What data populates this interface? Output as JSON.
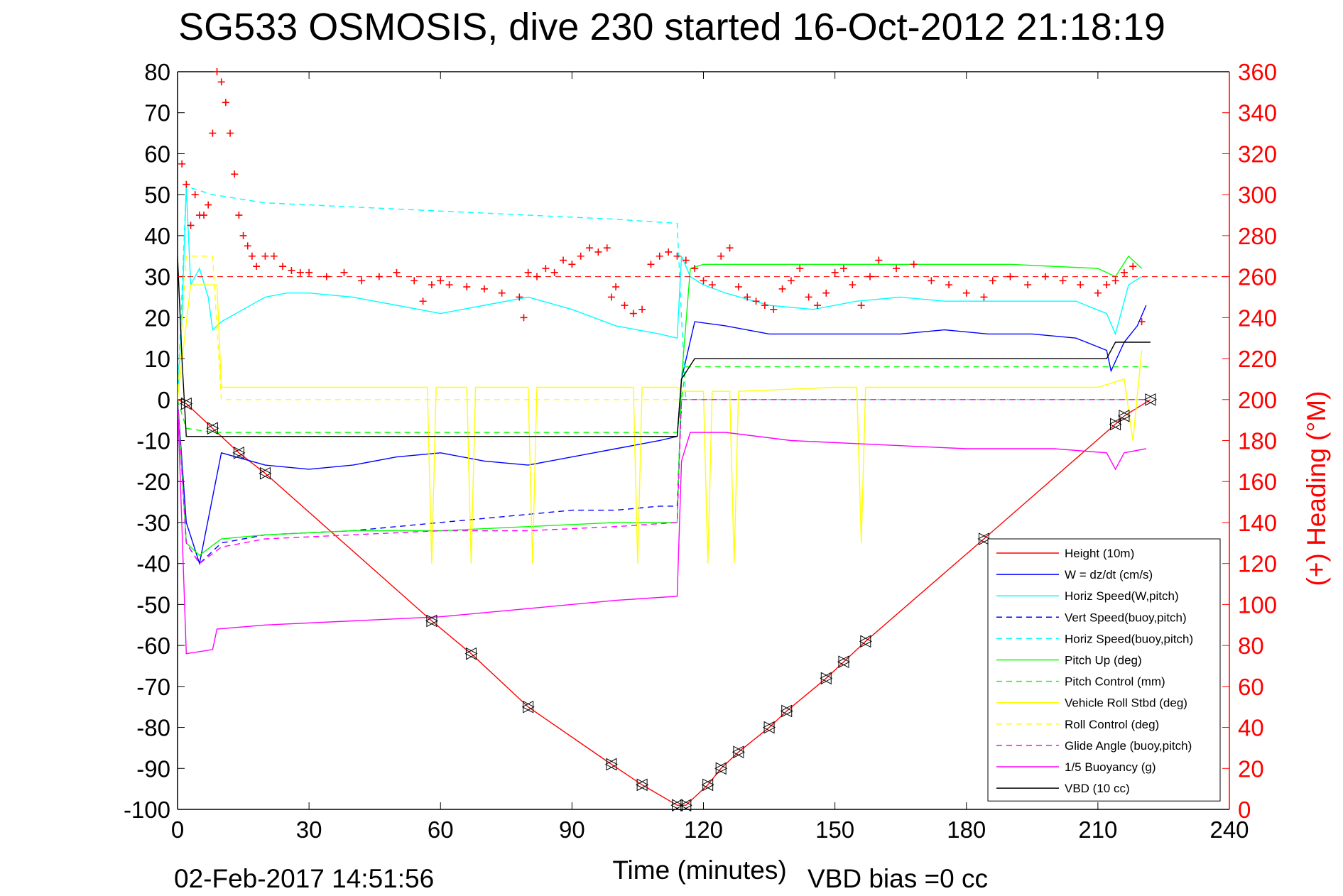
{
  "chart_data": {
    "type": "line",
    "title": "SG533 OSMOSIS, dive 230 started 16-Oct-2012 21:18:19",
    "xlabel": "Time (minutes)",
    "ylabel_right": "(+) Heading (°M)",
    "footer_left": "02-Feb-2017 14:51:56",
    "footer_right": "VBD bias =0 cc",
    "xlim": [
      0,
      240
    ],
    "ylim": [
      -100,
      80
    ],
    "ylim_right": [
      0,
      360
    ],
    "x_ticks": [
      0,
      30,
      60,
      90,
      120,
      150,
      180,
      210,
      240
    ],
    "y_ticks": [
      80,
      70,
      60,
      50,
      40,
      30,
      20,
      10,
      0,
      -10,
      -20,
      -30,
      -40,
      -50,
      -60,
      -70,
      -80,
      -90,
      -100
    ],
    "y_ticks_right": [
      360,
      340,
      320,
      300,
      280,
      260,
      240,
      220,
      200,
      180,
      160,
      140,
      120,
      100,
      80,
      60,
      40,
      20,
      0
    ],
    "grid": true,
    "legend_position": "bottom-right",
    "series": [
      {
        "name": "Height (10m)",
        "color": "#ff0000",
        "style": "solid",
        "x": [
          0,
          2,
          8,
          14,
          20,
          58,
          67,
          80,
          99,
          106,
          114,
          116,
          121,
          124,
          128,
          135,
          139,
          148,
          152,
          157,
          184,
          214,
          216,
          222
        ],
        "y": [
          0,
          -1,
          -7,
          -13,
          -18,
          -54,
          -62,
          -75,
          -89,
          -94,
          -99,
          -99,
          -94,
          -90,
          -86,
          -80,
          -76,
          -68,
          -64,
          -59,
          -34,
          -6,
          -4,
          0
        ]
      },
      {
        "name": "W = dz/dt (cm/s)",
        "color": "#0000ff",
        "style": "solid",
        "x": [
          0,
          2,
          5,
          10,
          20,
          30,
          40,
          50,
          60,
          70,
          80,
          90,
          100,
          110,
          114,
          115,
          118,
          125,
          135,
          145,
          155,
          165,
          175,
          185,
          195,
          205,
          212,
          213,
          216,
          219,
          221
        ],
        "y": [
          0,
          -30,
          -40,
          -13,
          -16,
          -17,
          -16,
          -14,
          -13,
          -15,
          -16,
          -14,
          -12,
          -10,
          -9,
          5,
          19,
          18,
          16,
          16,
          16,
          16,
          17,
          16,
          16,
          15,
          12,
          7,
          14,
          18,
          23
        ]
      },
      {
        "name": "Horiz Speed(W,pitch)",
        "color": "#00ffff",
        "style": "solid",
        "x": [
          0,
          1,
          2,
          3,
          5,
          7,
          8,
          10,
          15,
          20,
          25,
          30,
          40,
          50,
          60,
          70,
          80,
          90,
          100,
          110,
          114,
          115,
          117,
          120,
          125,
          135,
          145,
          155,
          165,
          175,
          185,
          195,
          205,
          212,
          214,
          217,
          220
        ],
        "y": [
          0,
          20,
          52,
          28,
          32,
          25,
          17,
          19,
          22,
          25,
          26,
          26,
          25,
          23,
          21,
          23,
          25,
          22,
          18,
          16,
          15,
          35,
          30,
          28,
          26,
          23,
          22,
          24,
          25,
          24,
          24,
          24,
          24,
          21,
          16,
          28,
          30
        ]
      },
      {
        "name": "Vert Speed(buoy,pitch)",
        "color": "#0000ff",
        "style": "dashed",
        "x": [
          0,
          2,
          5,
          10,
          20,
          40,
          60,
          70,
          80,
          90,
          100,
          110,
          114,
          115,
          118,
          150,
          180,
          210,
          221
        ],
        "y": [
          0,
          -35,
          -40,
          -35,
          -33,
          -32,
          -30,
          -29,
          -28,
          -27,
          -27,
          -26,
          -26,
          0,
          0,
          0,
          0,
          0,
          0
        ]
      },
      {
        "name": "Horiz Speed(buoy,pitch)",
        "color": "#00ffff",
        "style": "dashed",
        "x": [
          0,
          2,
          8,
          20,
          40,
          60,
          80,
          100,
          114,
          115,
          116,
          150,
          180,
          210,
          221
        ],
        "y": [
          0,
          52,
          50,
          48,
          47,
          46,
          45,
          44,
          43,
          20,
          0,
          0,
          0,
          0,
          0
        ]
      },
      {
        "name": "Pitch Up (deg)",
        "color": "#00ff00",
        "style": "solid",
        "x": [
          0,
          2,
          5,
          10,
          20,
          40,
          60,
          80,
          100,
          114,
          115,
          117,
          120,
          130,
          150,
          170,
          190,
          210,
          214,
          217,
          220
        ],
        "y": [
          0,
          -35,
          -38,
          -34,
          -33,
          -32,
          -32,
          -31,
          -30,
          -30,
          5,
          32,
          33,
          33,
          33,
          33,
          33,
          32,
          30,
          35,
          32
        ]
      },
      {
        "name": "Pitch Control (mm)",
        "color": "#00ff00",
        "style": "dashed",
        "x": [
          0,
          2,
          8,
          20,
          60,
          100,
          114,
          116,
          120,
          160,
          200,
          214,
          222
        ],
        "y": [
          0,
          -7,
          -8,
          -8,
          -8,
          -8,
          -8,
          8,
          8,
          8,
          8,
          8,
          8
        ]
      },
      {
        "name": "Vehicle Roll Stbd (deg)",
        "color": "#ffff00",
        "style": "solid",
        "x": [
          0,
          3,
          6,
          9,
          10,
          16,
          18,
          20,
          30,
          57,
          58,
          59,
          66,
          67,
          68,
          80,
          81,
          82,
          104,
          105,
          106,
          114,
          116,
          120,
          121,
          122,
          126,
          127,
          128,
          150,
          155,
          156,
          157,
          180,
          210,
          216,
          218,
          220
        ],
        "y": [
          0,
          28,
          28,
          28,
          3,
          3,
          3,
          3,
          3,
          3,
          -40,
          3,
          3,
          -40,
          3,
          3,
          -40,
          3,
          3,
          -40,
          3,
          3,
          2,
          2,
          -40,
          2,
          2,
          -40,
          2,
          3,
          3,
          -35,
          3,
          3,
          3,
          5,
          -10,
          12
        ]
      },
      {
        "name": "Roll Control (deg)",
        "color": "#ffff00",
        "style": "dashed",
        "x": [
          0,
          2,
          8,
          10,
          60,
          114,
          116,
          150,
          180,
          210,
          222
        ],
        "y": [
          0,
          35,
          35,
          0,
          0,
          0,
          0,
          0,
          0,
          0,
          0
        ]
      },
      {
        "name": "Glide Angle (buoy,pitch)",
        "color": "#ff00ff",
        "style": "dashed",
        "x": [
          0,
          2,
          5,
          10,
          20,
          40,
          60,
          80,
          100,
          114,
          115,
          116,
          150,
          180,
          210,
          221
        ],
        "y": [
          0,
          -35,
          -40,
          -36,
          -34,
          -33,
          -32,
          -32,
          -31,
          -30,
          0,
          0,
          0,
          0,
          0,
          0
        ]
      },
      {
        "name": "1/5 Buoyancy (g)",
        "color": "#ff00ff",
        "style": "solid",
        "x": [
          0,
          2,
          8,
          9,
          20,
          40,
          60,
          80,
          100,
          114,
          115,
          117,
          125,
          140,
          160,
          180,
          200,
          212,
          214,
          216,
          221
        ],
        "y": [
          0,
          -62,
          -61,
          -56,
          -55,
          -54,
          -53,
          -51,
          -49,
          -48,
          -15,
          -8,
          -8,
          -10,
          -11,
          -12,
          -12,
          -13,
          -17,
          -13,
          -12
        ]
      },
      {
        "name": "VBD (10 cc)",
        "color": "#000000",
        "style": "solid",
        "x": [
          0,
          1,
          2,
          10,
          40,
          80,
          114,
          115,
          118,
          150,
          180,
          212,
          214,
          222
        ],
        "y": [
          35,
          10,
          -9,
          -9,
          -9,
          -9,
          -9,
          5,
          10,
          10,
          10,
          10,
          14,
          14
        ]
      }
    ],
    "heading": {
      "name": "(+) Heading (°M)",
      "color": "#ff0000",
      "reference": 260,
      "x": [
        1,
        2,
        3,
        4,
        5,
        6,
        7,
        8,
        9,
        10,
        11,
        12,
        13,
        14,
        15,
        16,
        17,
        18,
        20,
        22,
        24,
        26,
        28,
        30,
        34,
        38,
        42,
        46,
        50,
        54,
        56,
        58,
        60,
        62,
        66,
        70,
        74,
        78,
        79,
        80,
        82,
        84,
        86,
        88,
        90,
        92,
        94,
        96,
        98,
        99,
        100,
        102,
        104,
        106,
        108,
        110,
        112,
        114,
        116,
        118,
        120,
        122,
        124,
        126,
        128,
        130,
        132,
        134,
        136,
        138,
        140,
        142,
        144,
        146,
        148,
        150,
        152,
        154,
        156,
        158,
        160,
        164,
        168,
        172,
        176,
        180,
        184,
        186,
        190,
        194,
        198,
        202,
        206,
        210,
        212,
        214,
        216,
        218,
        220
      ],
      "y": [
        315,
        305,
        285,
        300,
        290,
        290,
        295,
        330,
        360,
        355,
        345,
        330,
        310,
        290,
        280,
        275,
        270,
        265,
        270,
        270,
        265,
        263,
        262,
        262,
        260,
        262,
        258,
        260,
        262,
        258,
        248,
        256,
        258,
        256,
        255,
        254,
        252,
        250,
        240,
        262,
        260,
        264,
        262,
        268,
        266,
        270,
        274,
        272,
        274,
        250,
        255,
        246,
        242,
        244,
        266,
        270,
        272,
        270,
        268,
        264,
        258,
        256,
        270,
        274,
        255,
        250,
        248,
        246,
        244,
        254,
        258,
        264,
        250,
        246,
        252,
        262,
        264,
        256,
        246,
        260,
        268,
        264,
        266,
        258,
        256,
        252,
        250,
        258,
        260,
        256,
        260,
        258,
        256,
        252,
        256,
        258,
        262,
        265,
        238
      ]
    }
  }
}
